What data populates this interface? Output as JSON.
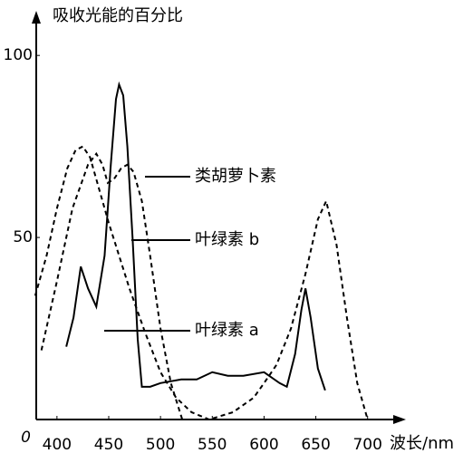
{
  "chart_data": {
    "type": "line",
    "ylabel": "吸收光能的百分比",
    "xlabel": "波长/nm",
    "xlim": [
      380,
      730
    ],
    "ylim": [
      0,
      110
    ],
    "xticks": [
      400,
      450,
      500,
      550,
      600,
      650,
      700
    ],
    "yticks": [
      0,
      50,
      100
    ],
    "series": [
      {
        "name": "类胡萝卜素",
        "color": "#000000",
        "dash": true,
        "x": [
          385,
          400,
          415,
          430,
          438,
          444,
          449,
          455,
          462,
          468,
          474,
          482,
          490,
          500,
          510,
          521
        ],
        "values": [
          19,
          38,
          58,
          70,
          73,
          70,
          65,
          66,
          69,
          70,
          68,
          60,
          45,
          25,
          10,
          0
        ]
      },
      {
        "name": "叶绿素 b",
        "color": "#000000",
        "dash": false,
        "x": [
          409,
          416,
          423,
          430,
          438,
          446,
          452,
          457,
          460,
          464,
          468,
          473,
          478,
          482,
          490,
          500,
          520,
          535,
          550,
          565,
          580,
          600,
          615,
          622,
          630,
          636,
          640,
          645,
          652,
          659
        ],
        "values": [
          20,
          28,
          42,
          36,
          31,
          45,
          70,
          88,
          92,
          89,
          75,
          50,
          22,
          9,
          9,
          10,
          11,
          11,
          13,
          12,
          12,
          13,
          10,
          9,
          18,
          30,
          36,
          28,
          14,
          8
        ]
      },
      {
        "name": "叶绿素 a",
        "color": "#000000",
        "dash": true,
        "x": [
          379,
          390,
          400,
          410,
          418,
          425,
          432,
          440,
          450,
          460,
          470,
          485,
          500,
          515,
          530,
          547,
          570,
          590,
          600,
          612,
          626,
          640,
          652,
          660,
          670,
          680,
          690,
          700
        ],
        "values": [
          34,
          45,
          58,
          69,
          74,
          75,
          72,
          64,
          54,
          45,
          36,
          24,
          13,
          6,
          2,
          0,
          2,
          6,
          10,
          15,
          25,
          40,
          55,
          60,
          48,
          28,
          10,
          0
        ]
      }
    ]
  }
}
